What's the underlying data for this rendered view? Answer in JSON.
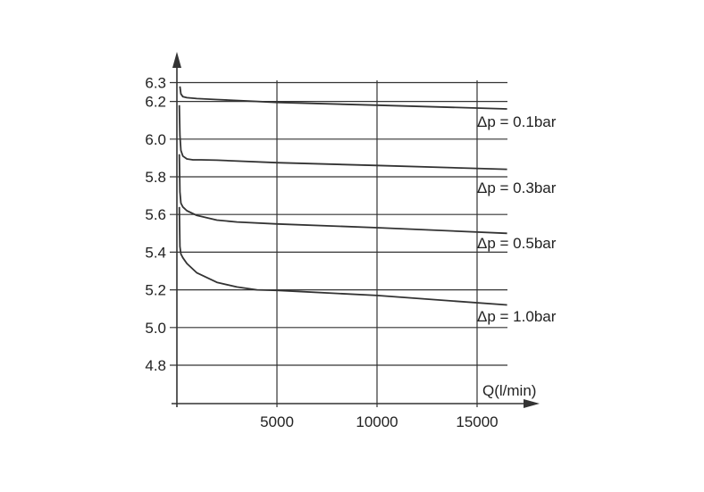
{
  "chart_data": {
    "type": "line",
    "title": "",
    "xlabel": "Q(l/min)",
    "ylabel": "",
    "xlim": [
      0,
      16500
    ],
    "ylim": [
      4.8,
      6.3
    ],
    "x_ticks": [
      5000,
      10000,
      15000
    ],
    "x_tick_labels": [
      "5000",
      "10000",
      "15000"
    ],
    "y_ticks": [
      4.8,
      5.0,
      5.2,
      5.4,
      5.6,
      5.8,
      6.0,
      6.2,
      6.3
    ],
    "y_tick_labels": [
      "4.8",
      "5.0",
      "5.2",
      "5.4",
      "5.6",
      "5.8",
      "6.0",
      "6.2",
      "6.3"
    ],
    "grid": true,
    "series": [
      {
        "name": "Δp = 0.1bar",
        "x": [
          150,
          200,
          300,
          500,
          1000,
          2000,
          5000,
          10000,
          16500
        ],
        "y": [
          6.28,
          6.24,
          6.225,
          6.22,
          6.215,
          6.21,
          6.195,
          6.18,
          6.16
        ]
      },
      {
        "name": "Δp = 0.3bar",
        "x": [
          120,
          150,
          200,
          300,
          500,
          800,
          1200,
          2000,
          5000,
          10000,
          16500
        ],
        "y": [
          6.18,
          6.02,
          5.94,
          5.91,
          5.895,
          5.89,
          5.89,
          5.888,
          5.875,
          5.86,
          5.84
        ]
      },
      {
        "name": "Δp = 0.5bar",
        "x": [
          120,
          150,
          200,
          300,
          500,
          1000,
          2000,
          3000,
          5000,
          10000,
          16500
        ],
        "y": [
          5.92,
          5.72,
          5.66,
          5.64,
          5.62,
          5.595,
          5.57,
          5.56,
          5.55,
          5.53,
          5.5
        ]
      },
      {
        "name": "Δp = 1.0bar",
        "x": [
          120,
          150,
          200,
          300,
          500,
          1000,
          2000,
          3000,
          4000,
          5000,
          10000,
          16500
        ],
        "y": [
          5.64,
          5.43,
          5.39,
          5.37,
          5.34,
          5.29,
          5.24,
          5.215,
          5.2,
          5.197,
          5.17,
          5.12
        ]
      }
    ],
    "legend": "labels at right end of each curve"
  }
}
